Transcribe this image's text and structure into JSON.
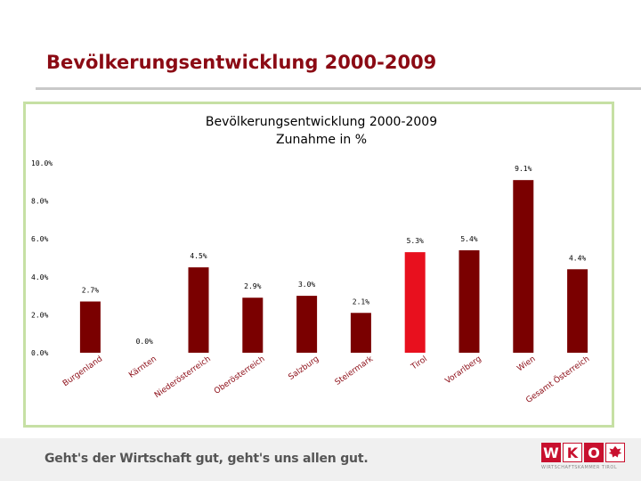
{
  "slide": {
    "title": "Bevölkerungsentwicklung 2000-2009",
    "slogan": "Geht's der Wirtschaft gut, geht's uns allen gut.",
    "logo_letters": [
      "W",
      "K",
      "O"
    ],
    "logo_subtitle": "WIRTSCHAFTSKAMMER TIROL"
  },
  "colors": {
    "bar": "#7a0000",
    "highlight_bar": "#e8101e",
    "title": "#8b0a14",
    "frame": "#c6e0a4"
  },
  "chart_data": {
    "type": "bar",
    "title": "Bevölkerungsentwicklung 2000-2009",
    "subtitle": "Zunahme in %",
    "categories": [
      "Burgenland",
      "Kärnten",
      "Niederösterreich",
      "Oberösterreich",
      "Salzburg",
      "Steiermark",
      "Tirol",
      "Vorarlberg",
      "Wien",
      "Gesamt Österreich"
    ],
    "values": [
      2.7,
      0.0,
      4.5,
      2.9,
      3.0,
      2.1,
      5.3,
      5.4,
      9.1,
      4.4
    ],
    "value_labels": [
      "2.7%",
      "0.0%",
      "4.5%",
      "2.9%",
      "3.0%",
      "2.1%",
      "5.3%",
      "5.4%",
      "9.1%",
      "4.4%"
    ],
    "highlight_index": 6,
    "yticks": [
      "0.0%",
      "2.0%",
      "4.0%",
      "6.0%",
      "8.0%",
      "10.0%"
    ],
    "ytick_values": [
      0,
      2,
      4,
      6,
      8,
      10
    ],
    "ylim": [
      0,
      10
    ],
    "xlabel": "",
    "ylabel": "",
    "grid": false,
    "legend": "none"
  }
}
